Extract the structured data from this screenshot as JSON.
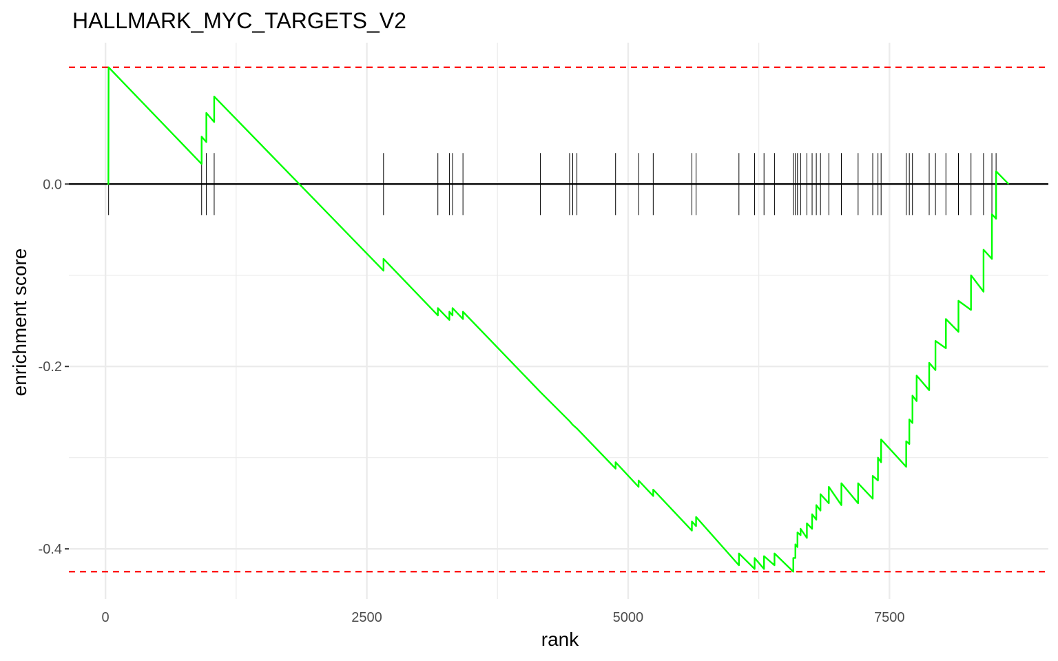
{
  "chart_data": {
    "type": "line",
    "title": "HALLMARK_MYC_TARGETS_V2",
    "xlabel": "rank",
    "ylabel": "enrichment score",
    "xlim": [
      -350,
      9020
    ],
    "ylim": [
      -0.455,
      0.155
    ],
    "x_ticks": [
      0,
      2500,
      5000,
      7500
    ],
    "x_tick_labels": [
      "0",
      "2500",
      "5000",
      "7500"
    ],
    "y_ticks": [
      0.0,
      -0.2,
      -0.4
    ],
    "y_tick_labels": [
      "0.0",
      "-0.2",
      "-0.4"
    ],
    "grid": true,
    "colors": {
      "curve": "#00ff00",
      "dashed_lines": "#ff0000",
      "zero_line": "#000000",
      "hits": "#000000",
      "grid": "#ebebeb"
    },
    "max_es": 0.128,
    "min_es": -0.425,
    "gene_hits": [
      30,
      920,
      965,
      1040,
      2660,
      3180,
      3290,
      3320,
      3420,
      4160,
      4440,
      4470,
      4510,
      4880,
      5100,
      5240,
      5610,
      5650,
      6060,
      6210,
      6300,
      6400,
      6580,
      6600,
      6620,
      6650,
      6710,
      6760,
      6800,
      6840,
      6920,
      7040,
      7200,
      7340,
      7390,
      7420,
      7660,
      7690,
      7720,
      7880,
      7940,
      8040,
      8160,
      8280,
      8400,
      8480,
      8520
    ],
    "series": [
      {
        "values": [
          [
            20,
            0.0
          ],
          [
            28,
            0.0
          ],
          [
            30,
            0.128
          ],
          [
            920,
            0.022
          ],
          [
            920,
            0.052
          ],
          [
            965,
            0.046
          ],
          [
            965,
            0.078
          ],
          [
            1040,
            0.068
          ],
          [
            1040,
            0.096
          ],
          [
            2660,
            -0.095
          ],
          [
            2660,
            -0.082
          ],
          [
            3180,
            -0.144
          ],
          [
            3180,
            -0.136
          ],
          [
            3290,
            -0.149
          ],
          [
            3290,
            -0.14
          ],
          [
            3320,
            -0.144
          ],
          [
            3320,
            -0.136
          ],
          [
            3420,
            -0.148
          ],
          [
            3420,
            -0.14
          ],
          [
            4160,
            -0.228
          ],
          [
            4440,
            -0.26
          ],
          [
            4470,
            -0.264
          ],
          [
            4510,
            -0.268
          ],
          [
            4880,
            -0.312
          ],
          [
            4880,
            -0.305
          ],
          [
            5100,
            -0.332
          ],
          [
            5100,
            -0.325
          ],
          [
            5240,
            -0.342
          ],
          [
            5240,
            -0.335
          ],
          [
            5610,
            -0.38
          ],
          [
            5610,
            -0.37
          ],
          [
            5650,
            -0.375
          ],
          [
            5650,
            -0.365
          ],
          [
            6060,
            -0.418
          ],
          [
            6060,
            -0.405
          ],
          [
            6210,
            -0.422
          ],
          [
            6210,
            -0.41
          ],
          [
            6300,
            -0.422
          ],
          [
            6300,
            -0.408
          ],
          [
            6400,
            -0.418
          ],
          [
            6400,
            -0.405
          ],
          [
            6580,
            -0.425
          ],
          [
            6580,
            -0.41
          ],
          [
            6600,
            -0.41
          ],
          [
            6600,
            -0.395
          ],
          [
            6620,
            -0.398
          ],
          [
            6620,
            -0.382
          ],
          [
            6650,
            -0.385
          ],
          [
            6650,
            -0.378
          ],
          [
            6710,
            -0.388
          ],
          [
            6710,
            -0.372
          ],
          [
            6760,
            -0.378
          ],
          [
            6760,
            -0.362
          ],
          [
            6800,
            -0.368
          ],
          [
            6800,
            -0.352
          ],
          [
            6840,
            -0.358
          ],
          [
            6840,
            -0.34
          ],
          [
            6920,
            -0.35
          ],
          [
            6920,
            -0.332
          ],
          [
            7040,
            -0.352
          ],
          [
            7040,
            -0.328
          ],
          [
            7200,
            -0.35
          ],
          [
            7200,
            -0.328
          ],
          [
            7340,
            -0.345
          ],
          [
            7340,
            -0.32
          ],
          [
            7390,
            -0.325
          ],
          [
            7390,
            -0.3
          ],
          [
            7420,
            -0.305
          ],
          [
            7420,
            -0.28
          ],
          [
            7660,
            -0.31
          ],
          [
            7660,
            -0.282
          ],
          [
            7690,
            -0.285
          ],
          [
            7690,
            -0.258
          ],
          [
            7720,
            -0.262
          ],
          [
            7720,
            -0.232
          ],
          [
            7760,
            -0.238
          ],
          [
            7760,
            -0.21
          ],
          [
            7880,
            -0.226
          ],
          [
            7880,
            -0.196
          ],
          [
            7940,
            -0.204
          ],
          [
            7940,
            -0.172
          ],
          [
            8040,
            -0.18
          ],
          [
            8040,
            -0.148
          ],
          [
            8160,
            -0.162
          ],
          [
            8160,
            -0.128
          ],
          [
            8280,
            -0.138
          ],
          [
            8280,
            -0.1
          ],
          [
            8400,
            -0.118
          ],
          [
            8400,
            -0.072
          ],
          [
            8480,
            -0.082
          ],
          [
            8480,
            -0.033
          ],
          [
            8520,
            -0.038
          ],
          [
            8520,
            0.014
          ],
          [
            8640,
            0.0
          ]
        ]
      }
    ]
  }
}
